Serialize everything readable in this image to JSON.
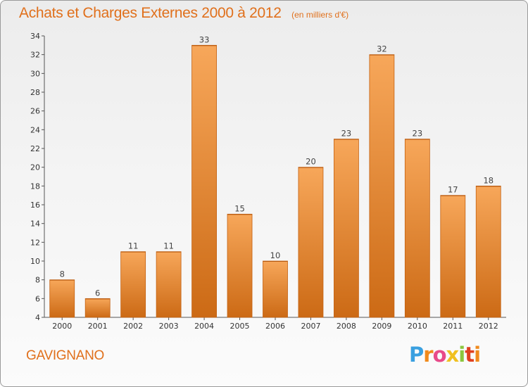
{
  "chart_data": {
    "type": "bar",
    "title": "Achats et Charges Externes 2000 à 2012",
    "subtitle": "(en milliers d'€)",
    "categories": [
      "2000",
      "2001",
      "2002",
      "2003",
      "2004",
      "2005",
      "2006",
      "2007",
      "2008",
      "2009",
      "2010",
      "2011",
      "2012"
    ],
    "values": [
      8,
      6,
      11,
      11,
      33,
      15,
      10,
      20,
      23,
      32,
      23,
      17,
      18
    ],
    "xlabel": "",
    "ylabel": "",
    "ylim": [
      4,
      34
    ],
    "yticks": [
      4,
      6,
      8,
      10,
      12,
      14,
      16,
      18,
      20,
      22,
      24,
      26,
      28,
      30,
      32,
      34
    ],
    "grid": false,
    "legend": "none",
    "bar_color_top": "#f7a75a",
    "bar_color_bottom": "#cc6a15"
  },
  "footer": {
    "commune": "GAVIGNANO",
    "logo_letters": [
      "P",
      "r",
      "o",
      "x",
      "i",
      "t",
      "i"
    ],
    "logo_colors": [
      "#3aa0e0",
      "#f08a1c",
      "#e84a8a",
      "#f0c020",
      "#8cc63e",
      "#e04020",
      "#f08a1c"
    ]
  }
}
